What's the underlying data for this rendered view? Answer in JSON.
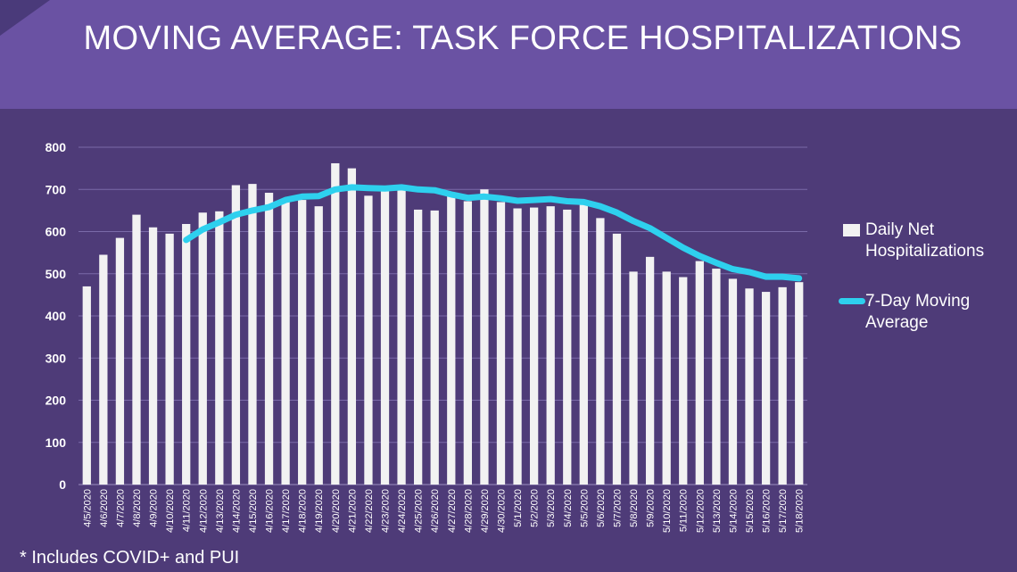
{
  "header": {
    "title": "MOVING AVERAGE: TASK FORCE HOSPITALIZATIONS"
  },
  "legend": {
    "bar_label": "Daily Net Hospitalizations",
    "line_label": "7-Day Moving Average"
  },
  "footnote": "* Includes COVID+ and PUI",
  "colors": {
    "bars": "#f2f2f2",
    "line": "#2ed0ee",
    "background": "#4e3b78",
    "header": "#6a52a3"
  },
  "chart_data": {
    "type": "bar",
    "categories": [
      "4/5/2020",
      "4/6/2020",
      "4/7/2020",
      "4/8/2020",
      "4/9/2020",
      "4/10/2020",
      "4/11/2020",
      "4/12/2020",
      "4/13/2020",
      "4/14/2020",
      "4/15/2020",
      "4/16/2020",
      "4/17/2020",
      "4/18/2020",
      "4/19/2020",
      "4/20/2020",
      "4/21/2020",
      "4/22/2020",
      "4/23/2020",
      "4/24/2020",
      "4/25/2020",
      "4/26/2020",
      "4/27/2020",
      "4/28/2020",
      "4/29/2020",
      "4/30/2020",
      "5/1/2020",
      "5/2/2020",
      "5/3/2020",
      "5/4/2020",
      "5/5/2020",
      "5/6/2020",
      "5/7/2020",
      "5/8/2020",
      "5/9/2020",
      "5/10/2020",
      "5/11/2020",
      "5/12/2020",
      "5/13/2020",
      "5/14/2020",
      "5/15/2020",
      "5/16/2020",
      "5/17/2020",
      "5/18/2020"
    ],
    "series": [
      {
        "name": "Daily Net Hospitalizations",
        "type": "bar",
        "values": [
          470,
          545,
          585,
          640,
          610,
          595,
          618,
          645,
          648,
          710,
          713,
          692,
          672,
          675,
          660,
          762,
          750,
          685,
          700,
          703,
          652,
          650,
          685,
          672,
          700,
          670,
          655,
          657,
          660,
          652,
          665,
          632,
          595,
          505,
          540,
          505,
          492,
          530,
          512,
          488,
          465,
          457,
          468,
          480
        ]
      },
      {
        "name": "7-Day Moving Average",
        "type": "line",
        "values": [
          null,
          null,
          null,
          null,
          null,
          null,
          580,
          605,
          622,
          640,
          650,
          658,
          675,
          683,
          684,
          700,
          705,
          703,
          702,
          705,
          700,
          698,
          688,
          680,
          683,
          679,
          673,
          675,
          677,
          672,
          670,
          660,
          645,
          625,
          608,
          585,
          562,
          542,
          526,
          511,
          504,
          493,
          493,
          489
        ]
      }
    ],
    "ylim": [
      0,
      800
    ],
    "yticks": [
      0,
      100,
      200,
      300,
      400,
      500,
      600,
      700,
      800
    ],
    "grid": true,
    "legend_position": "right"
  }
}
